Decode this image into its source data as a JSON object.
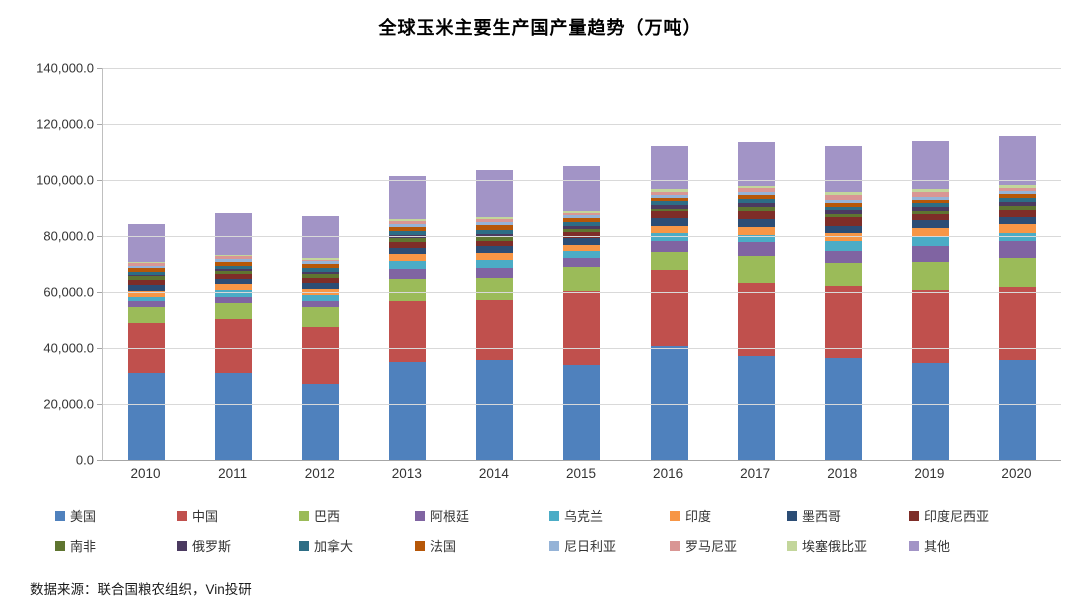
{
  "title": "全球玉米主要生产国产量趋势（万吨）",
  "source": "数据来源：联合国粮农组织，Vin投研",
  "chart_data": {
    "type": "bar",
    "stacked": true,
    "title": "全球玉米主要生产国产量趋势（万吨）",
    "xlabel": "",
    "ylabel": "",
    "ylim": [
      0,
      140000
    ],
    "y_tick_step": 20000,
    "y_tick_labels": [
      "0.0",
      "20,000.0",
      "40,000.0",
      "60,000.0",
      "80,000.0",
      "100,000.0",
      "120,000.0",
      "140,000.0"
    ],
    "grid": true,
    "legend_position": "bottom",
    "categories": [
      "2010",
      "2011",
      "2012",
      "2013",
      "2014",
      "2015",
      "2016",
      "2017",
      "2018",
      "2019",
      "2020"
    ],
    "series": [
      {
        "name": "美国",
        "color": "#4F81BD",
        "values": [
          31200,
          31000,
          27200,
          34900,
          35600,
          34100,
          40800,
          37100,
          36400,
          34600,
          35800
        ]
      },
      {
        "name": "中国",
        "color": "#C0504D",
        "values": [
          17900,
          19400,
          20300,
          21900,
          21600,
          26300,
          27100,
          26000,
          25700,
          26100,
          26100
        ]
      },
      {
        "name": "巴西",
        "color": "#9BBB59",
        "values": [
          5540,
          5570,
          7100,
          8030,
          7990,
          8530,
          6410,
          9780,
          8230,
          10110,
          10400
        ]
      },
      {
        "name": "阿根廷",
        "color": "#8064A2",
        "values": [
          2270,
          2380,
          2120,
          3250,
          3320,
          3380,
          3980,
          4950,
          4350,
          5680,
          5840
        ]
      },
      {
        "name": "乌克兰",
        "color": "#4BACC6",
        "values": [
          1190,
          2280,
          2090,
          3090,
          2850,
          2330,
          2800,
          2480,
          3580,
          3580,
          3030
        ]
      },
      {
        "name": "印度",
        "color": "#F79646",
        "values": [
          2170,
          2180,
          2230,
          2430,
          2420,
          2240,
          2590,
          2870,
          2770,
          2780,
          3020
        ]
      },
      {
        "name": "墨西哥",
        "color": "#2C4D75",
        "values": [
          2330,
          1760,
          2210,
          2270,
          2570,
          2470,
          2820,
          2760,
          2700,
          2720,
          2760
        ]
      },
      {
        "name": "印度尼西亚",
        "color": "#7E2D28",
        "values": [
          1830,
          1760,
          1940,
          1850,
          1900,
          1960,
          2360,
          2890,
          3040,
          2260,
          2290
        ]
      },
      {
        "name": "南非",
        "color": "#5F7530",
        "values": [
          1280,
          1050,
          1200,
          1500,
          1480,
          1060,
          790,
          1680,
          1250,
          1130,
          1530
        ]
      },
      {
        "name": "俄罗斯",
        "color": "#4B3A60",
        "values": [
          310,
          700,
          820,
          1170,
          1130,
          1320,
          1540,
          1320,
          1140,
          1430,
          1390
        ]
      },
      {
        "name": "加拿大",
        "color": "#2D6D85",
        "values": [
          1190,
          1120,
          1310,
          1420,
          1150,
          1360,
          1340,
          1410,
          1390,
          1340,
          1360
        ]
      },
      {
        "name": "法国",
        "color": "#B65708",
        "values": [
          1370,
          1590,
          1560,
          1510,
          1870,
          1370,
          1230,
          1440,
          1250,
          1280,
          1350
        ]
      },
      {
        "name": "尼日利亚",
        "color": "#95B3D7",
        "values": [
          770,
          930,
          890,
          1040,
          1060,
          1060,
          1070,
          1030,
          1020,
          1100,
          1200
        ]
      },
      {
        "name": "罗马尼亚",
        "color": "#D99694",
        "values": [
          910,
          1180,
          600,
          1130,
          1190,
          900,
          1070,
          1420,
          1880,
          1740,
          1090
        ]
      },
      {
        "name": "埃塞俄比亚",
        "color": "#C3D69B",
        "values": [
          440,
          510,
          610,
          650,
          720,
          750,
          780,
          840,
          970,
          1000,
          1020
        ]
      },
      {
        "name": "其他",
        "color": "#A294C6",
        "values": [
          13800,
          14800,
          15100,
          15400,
          16700,
          15900,
          15600,
          15500,
          16600,
          17200,
          17500
        ]
      }
    ]
  }
}
